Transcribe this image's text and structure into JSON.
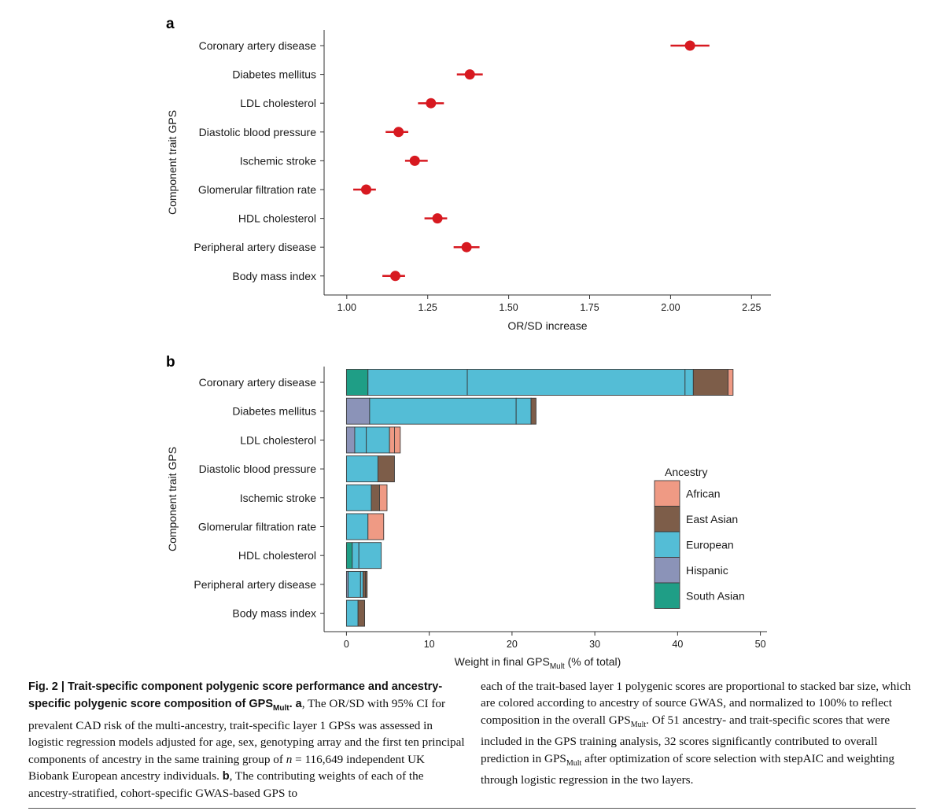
{
  "colors": {
    "African": "#ef9a84",
    "East Asian": "#7d5d49",
    "European": "#54bdd6",
    "Hispanic": "#8b93b8",
    "South Asian": "#1f9e86",
    "point": "#d71920",
    "axis": "#333333"
  },
  "chart_data": [
    {
      "type": "scatter",
      "panel": "a",
      "ylabel": "Component trait GPS",
      "xlabel": "OR/SD increase",
      "xlim": [
        0.93,
        2.31
      ],
      "xticks": [
        1.0,
        1.25,
        1.5,
        1.75,
        2.0,
        2.25
      ],
      "xtick_labels": [
        "1.00",
        "1.25",
        "1.50",
        "1.75",
        "2.00",
        "2.25"
      ],
      "categories": [
        "Coronary artery disease",
        "Diabetes mellitus",
        "LDL cholesterol",
        "Diastolic blood pressure",
        "Ischemic stroke",
        "Glomerular filtration rate",
        "HDL cholesterol",
        "Peripheral artery disease",
        "Body mass index"
      ],
      "points": [
        {
          "trait": "Coronary artery disease",
          "or": 2.06,
          "lo": 2.0,
          "hi": 2.12
        },
        {
          "trait": "Diabetes mellitus",
          "or": 1.38,
          "lo": 1.34,
          "hi": 1.42
        },
        {
          "trait": "LDL cholesterol",
          "or": 1.26,
          "lo": 1.22,
          "hi": 1.3
        },
        {
          "trait": "Diastolic blood pressure",
          "or": 1.16,
          "lo": 1.12,
          "hi": 1.19
        },
        {
          "trait": "Ischemic stroke",
          "or": 1.21,
          "lo": 1.18,
          "hi": 1.25
        },
        {
          "trait": "Glomerular filtration rate",
          "or": 1.06,
          "lo": 1.02,
          "hi": 1.09
        },
        {
          "trait": "HDL cholesterol",
          "or": 1.28,
          "lo": 1.24,
          "hi": 1.31
        },
        {
          "trait": "Peripheral artery disease",
          "or": 1.37,
          "lo": 1.33,
          "hi": 1.41
        },
        {
          "trait": "Body mass index",
          "or": 1.15,
          "lo": 1.11,
          "hi": 1.18
        }
      ],
      "grid": false
    },
    {
      "type": "bar",
      "orientation": "horizontal",
      "stacked": true,
      "panel": "b",
      "ylabel": "Component trait GPS",
      "xlabel": "Weight in final GPS",
      "xlabel_sub": "Mult",
      "xlabel_suffix": " (% of total)",
      "xlim": [
        0,
        50
      ],
      "xticks": [
        0,
        10,
        20,
        30,
        40,
        50
      ],
      "categories": [
        "Coronary artery disease",
        "Diabetes mellitus",
        "LDL cholesterol",
        "Diastolic blood pressure",
        "Ischemic stroke",
        "Glomerular filtration rate",
        "HDL cholesterol",
        "Peripheral artery disease",
        "Body mass index"
      ],
      "segments": [
        [
          [
            "South Asian",
            2.6
          ],
          [
            "European",
            12.0
          ],
          [
            "European",
            26.3
          ],
          [
            "European",
            1.0
          ],
          [
            "East Asian",
            4.2
          ],
          [
            "African",
            0.6
          ]
        ],
        [
          [
            "Hispanic",
            2.8
          ],
          [
            "European",
            17.7
          ],
          [
            "European",
            1.8
          ],
          [
            "East Asian",
            0.6
          ]
        ],
        [
          [
            "Hispanic",
            1.0
          ],
          [
            "European",
            1.4
          ],
          [
            "European",
            2.8
          ],
          [
            "African",
            0.6
          ],
          [
            "African",
            0.7
          ]
        ],
        [
          [
            "European",
            3.8
          ],
          [
            "East Asian",
            2.0
          ]
        ],
        [
          [
            "European",
            3.0
          ],
          [
            "East Asian",
            1.0
          ],
          [
            "African",
            0.9
          ]
        ],
        [
          [
            "European",
            2.6
          ],
          [
            "African",
            1.9
          ]
        ],
        [
          [
            "South Asian",
            0.7
          ],
          [
            "European",
            0.8
          ],
          [
            "European",
            2.7
          ]
        ],
        [
          [
            "Hispanic",
            0.2
          ],
          [
            "European",
            1.5
          ],
          [
            "European",
            0.3
          ],
          [
            "East Asian",
            0.3
          ],
          [
            "East Asian",
            0.2
          ]
        ],
        [
          [
            "European",
            1.4
          ],
          [
            "East Asian",
            0.8
          ]
        ]
      ],
      "legend": {
        "title": "Ancestry",
        "entries": [
          "African",
          "East Asian",
          "European",
          "Hispanic",
          "South Asian"
        ],
        "position": "right"
      },
      "grid": false
    }
  ],
  "caption": {
    "left_bold": "Fig. 2 | Trait-specific component polygenic score performance and ancestry-specific polygenic score composition of GPS",
    "left_bold_sub": "Mult",
    "left_bold_end": ".",
    "left_a": " a",
    "left_text1": ", The OR/SD with 95% CI for prevalent CAD risk of the multi-ancestry, trait-specific layer 1 GPSs was assessed in logistic regression models adjusted for age, sex, genotyping array and the first ten principal components of ancestry in the same training group of ",
    "left_n": "n",
    "left_text2": " = 116,649 independent UK Biobank European ancestry individuals. ",
    "left_b": "b",
    "left_text3": ", The contributing weights of each of the ancestry-stratified, cohort-specific GWAS-based GPS to",
    "right_text1": "each of the trait-based layer 1 polygenic scores are proportional to stacked bar size, which are colored according to ancestry of source GWAS, and normalized to 100% to reflect composition in the overall GPS",
    "right_sub1": "Mult",
    "right_text2": ". Of 51 ancestry- and trait-specific scores that were included in the GPS training analysis, 32 scores significantly contributed to overall prediction in GPS",
    "right_sub2": "Mult",
    "right_text3": " after optimization of score selection with stepAIC and weighting through logistic regression in the two layers."
  }
}
